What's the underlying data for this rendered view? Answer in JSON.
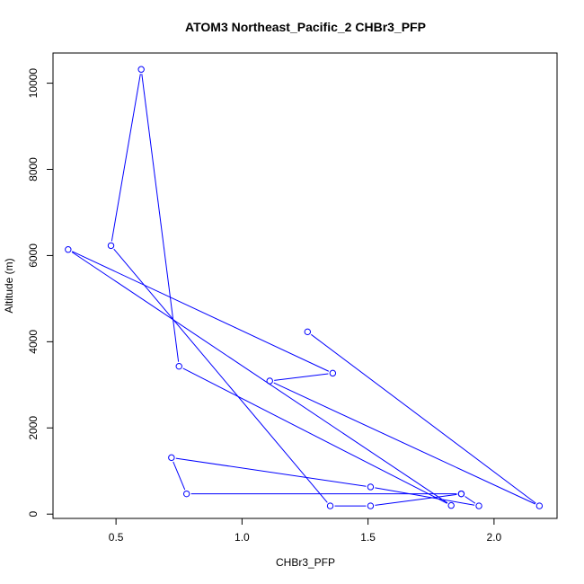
{
  "chart_data": {
    "type": "line",
    "title": "ATOM3 Northeast_Pacific_2 CHBr3_PFP",
    "xlabel": "CHBr3_PFP",
    "ylabel": "Altitude (m)",
    "xlim": [
      0.25,
      2.25
    ],
    "ylim": [
      -100,
      10700
    ],
    "x_ticks": [
      0.5,
      1.0,
      1.5,
      2.0
    ],
    "x_tick_labels": [
      "0.5",
      "1.0",
      "1.5",
      "2.0"
    ],
    "y_ticks": [
      0,
      2000,
      4000,
      6000,
      8000,
      10000
    ],
    "y_tick_labels": [
      "0",
      "2000",
      "4000",
      "6000",
      "8000",
      "10000"
    ],
    "grid": false,
    "series": [
      {
        "color": "#0000ff",
        "marker": "open-circle",
        "points": [
          {
            "x": 1.26,
            "y": 4230
          },
          {
            "x": 2.18,
            "y": 190
          },
          {
            "x": 1.11,
            "y": 3090
          },
          {
            "x": 1.36,
            "y": 3270
          },
          {
            "x": 0.31,
            "y": 6140
          },
          {
            "x": 1.83,
            "y": 200
          },
          {
            "x": 0.75,
            "y": 3430
          },
          {
            "x": 0.6,
            "y": 10320
          },
          {
            "x": 0.48,
            "y": 6230
          },
          {
            "x": 1.35,
            "y": 190
          },
          {
            "x": 1.51,
            "y": 190
          },
          {
            "x": 1.87,
            "y": 470
          },
          {
            "x": 1.94,
            "y": 190
          },
          {
            "x": 1.51,
            "y": 630
          },
          {
            "x": 0.72,
            "y": 1310
          },
          {
            "x": 0.78,
            "y": 470
          },
          {
            "x": 1.87,
            "y": 470
          }
        ]
      }
    ]
  }
}
